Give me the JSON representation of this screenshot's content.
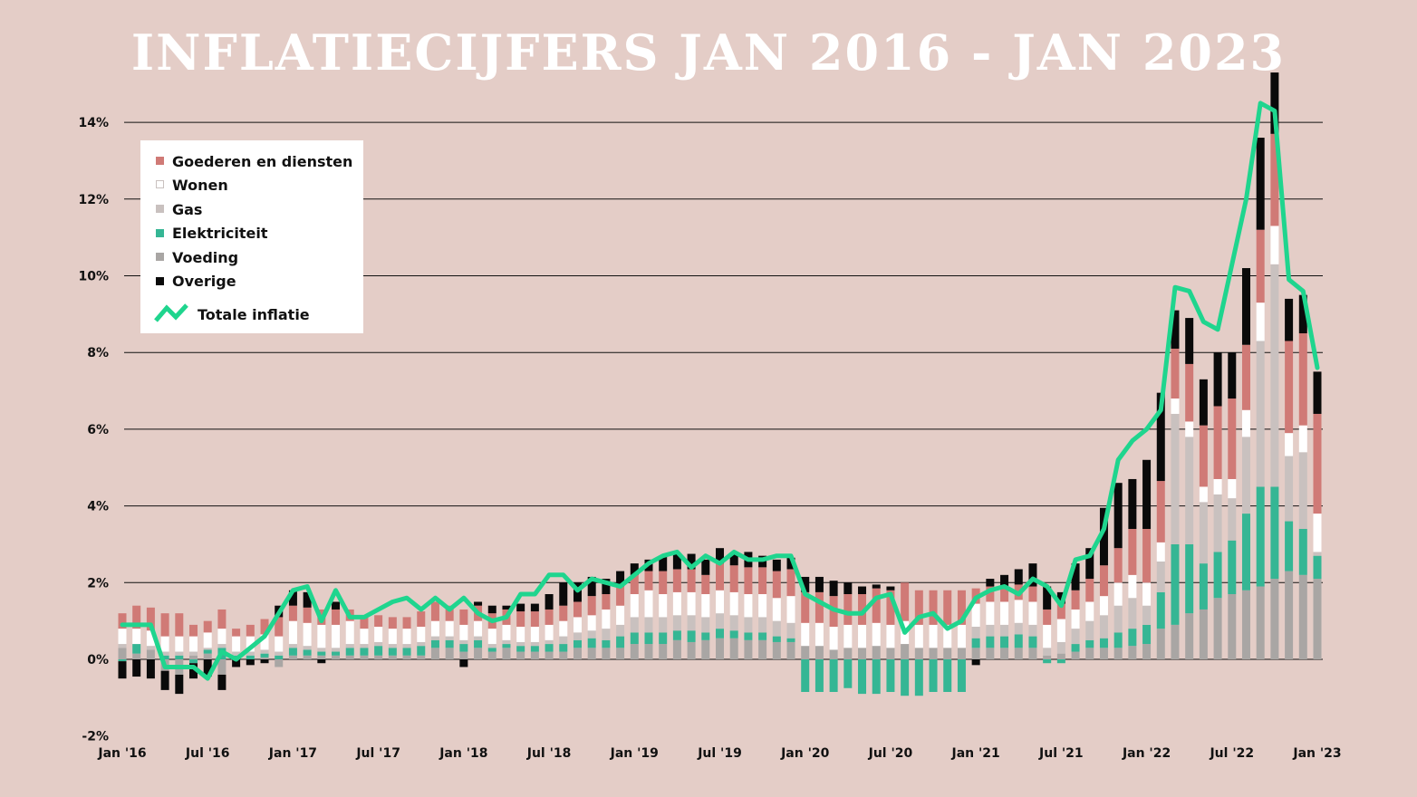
{
  "chart_data": {
    "type": "bar",
    "title": "INFLATIECIJFERS JAN 2016 - JAN 2023",
    "xlabel": "",
    "ylabel": "",
    "ylim": [
      -2,
      14.5
    ],
    "yticks": [
      -2,
      0,
      2,
      4,
      6,
      8,
      10,
      12,
      14
    ],
    "ytick_labels": [
      "-2%",
      "0%",
      "2%",
      "4%",
      "6%",
      "8%",
      "10%",
      "12%",
      "14%"
    ],
    "xtick_labels": [
      "Jan '16",
      "Jul '16",
      "Jan '17",
      "Jul '17",
      "Jan '18",
      "Jul '18",
      "Jan '19",
      "Jul '19",
      "Jan '20",
      "Jul '20",
      "Jan '21",
      "Jul '21",
      "Jan '22",
      "Jul '22",
      "Jan '23"
    ],
    "grid": true,
    "stacked": true,
    "legend_position": "top-left",
    "categories": [
      "2016-01",
      "2016-02",
      "2016-03",
      "2016-04",
      "2016-05",
      "2016-06",
      "2016-07",
      "2016-08",
      "2016-09",
      "2016-10",
      "2016-11",
      "2016-12",
      "2017-01",
      "2017-02",
      "2017-03",
      "2017-04",
      "2017-05",
      "2017-06",
      "2017-07",
      "2017-08",
      "2017-09",
      "2017-10",
      "2017-11",
      "2017-12",
      "2018-01",
      "2018-02",
      "2018-03",
      "2018-04",
      "2018-05",
      "2018-06",
      "2018-07",
      "2018-08",
      "2018-09",
      "2018-10",
      "2018-11",
      "2018-12",
      "2019-01",
      "2019-02",
      "2019-03",
      "2019-04",
      "2019-05",
      "2019-06",
      "2019-07",
      "2019-08",
      "2019-09",
      "2019-10",
      "2019-11",
      "2019-12",
      "2020-01",
      "2020-02",
      "2020-03",
      "2020-04",
      "2020-05",
      "2020-06",
      "2020-07",
      "2020-08",
      "2020-09",
      "2020-10",
      "2020-11",
      "2020-12",
      "2021-01",
      "2021-02",
      "2021-03",
      "2021-04",
      "2021-05",
      "2021-06",
      "2021-07",
      "2021-08",
      "2021-09",
      "2021-10",
      "2021-11",
      "2021-12",
      "2022-01",
      "2022-02",
      "2022-03",
      "2022-04",
      "2022-05",
      "2022-06",
      "2022-07",
      "2022-08",
      "2022-09",
      "2022-10",
      "2022-11",
      "2022-12",
      "2023-01"
    ],
    "series": [
      {
        "name": "Voeding",
        "color": "#a9a6a4",
        "values": [
          0.3,
          0.15,
          0.25,
          -0.3,
          -0.4,
          0.1,
          0.15,
          -0.4,
          0.0,
          0.0,
          0.05,
          -0.2,
          0.1,
          0.1,
          0.1,
          0.1,
          0.1,
          0.1,
          0.1,
          0.1,
          0.1,
          0.1,
          0.3,
          0.3,
          0.2,
          0.3,
          0.2,
          0.3,
          0.2,
          0.2,
          0.2,
          0.2,
          0.3,
          0.3,
          0.3,
          0.3,
          0.4,
          0.4,
          0.4,
          0.5,
          0.45,
          0.5,
          0.55,
          0.55,
          0.5,
          0.5,
          0.45,
          0.45,
          0.35,
          0.35,
          0.25,
          0.3,
          0.3,
          0.35,
          0.3,
          0.4,
          0.3,
          0.3,
          0.3,
          0.3,
          0.3,
          0.3,
          0.3,
          0.3,
          0.3,
          0.1,
          0.15,
          0.2,
          0.3,
          0.3,
          0.3,
          0.35,
          0.4,
          0.8,
          0.9,
          1.2,
          1.3,
          1.6,
          1.7,
          1.8,
          1.9,
          2.1,
          2.3,
          2.2,
          2.1
        ]
      },
      {
        "name": "Elektriciteit",
        "color": "#35b694",
        "values": [
          -0.05,
          0.25,
          0.0,
          0.1,
          0.1,
          -0.1,
          0.1,
          0.3,
          0.1,
          0.1,
          0.1,
          0.1,
          0.2,
          0.15,
          0.1,
          0.1,
          0.2,
          0.2,
          0.25,
          0.2,
          0.2,
          0.25,
          0.2,
          0.2,
          0.2,
          0.2,
          0.1,
          0.1,
          0.15,
          0.15,
          0.2,
          0.2,
          0.2,
          0.25,
          0.2,
          0.3,
          0.3,
          0.3,
          0.3,
          0.25,
          0.3,
          0.2,
          0.25,
          0.2,
          0.2,
          0.2,
          0.15,
          0.1,
          -0.85,
          -0.85,
          -0.85,
          -0.75,
          -0.9,
          -0.9,
          -0.85,
          -0.95,
          -0.95,
          -0.85,
          -0.85,
          -0.85,
          0.25,
          0.3,
          0.3,
          0.35,
          0.3,
          -0.1,
          -0.1,
          0.2,
          0.2,
          0.25,
          0.4,
          0.45,
          0.5,
          0.95,
          2.1,
          1.8,
          1.2,
          1.2,
          1.4,
          2.0,
          2.6,
          2.4,
          1.3,
          1.2,
          0.6
        ]
      },
      {
        "name": "Gas",
        "color": "#c9c1bf",
        "values": [
          0.1,
          0.0,
          0.1,
          0.1,
          0.1,
          0.1,
          0.05,
          0.1,
          0.1,
          0.1,
          0.1,
          0.1,
          0.1,
          0.1,
          0.1,
          0.1,
          0.1,
          0.1,
          0.1,
          0.1,
          0.1,
          0.1,
          0.1,
          0.1,
          0.1,
          0.1,
          0.1,
          0.1,
          0.1,
          0.1,
          0.1,
          0.2,
          0.2,
          0.2,
          0.3,
          0.3,
          0.4,
          0.4,
          0.4,
          0.4,
          0.4,
          0.4,
          0.4,
          0.4,
          0.4,
          0.4,
          0.4,
          0.4,
          0.0,
          0.0,
          0.0,
          0.0,
          0.0,
          0.0,
          0.0,
          0.0,
          0.0,
          0.0,
          0.0,
          0.0,
          0.3,
          0.3,
          0.3,
          0.3,
          0.3,
          0.2,
          0.3,
          0.4,
          0.5,
          0.6,
          0.7,
          0.8,
          0.5,
          0.8,
          3.4,
          2.8,
          1.6,
          1.5,
          1.1,
          2.0,
          3.8,
          5.8,
          1.7,
          2.0,
          0.1
        ]
      },
      {
        "name": "Wonen",
        "color": "#ffffff",
        "values": [
          0.4,
          0.4,
          0.4,
          0.4,
          0.4,
          0.4,
          0.4,
          0.4,
          0.4,
          0.4,
          0.4,
          0.4,
          0.6,
          0.6,
          0.6,
          0.6,
          0.6,
          0.4,
          0.4,
          0.4,
          0.4,
          0.4,
          0.4,
          0.4,
          0.4,
          0.4,
          0.4,
          0.4,
          0.4,
          0.4,
          0.4,
          0.4,
          0.4,
          0.4,
          0.5,
          0.5,
          0.6,
          0.7,
          0.6,
          0.6,
          0.6,
          0.6,
          0.6,
          0.6,
          0.6,
          0.6,
          0.6,
          0.7,
          0.6,
          0.6,
          0.6,
          0.6,
          0.6,
          0.6,
          0.6,
          0.6,
          0.6,
          0.6,
          0.6,
          0.6,
          0.6,
          0.6,
          0.6,
          0.6,
          0.6,
          0.6,
          0.6,
          0.5,
          0.5,
          0.5,
          0.6,
          0.6,
          0.6,
          0.5,
          0.4,
          0.4,
          0.4,
          0.4,
          0.5,
          0.7,
          1.0,
          1.0,
          0.6,
          0.7,
          1.0
        ]
      },
      {
        "name": "Goederen en diensten",
        "color": "#d07a76",
        "values": [
          0.4,
          0.6,
          0.6,
          0.6,
          0.6,
          0.3,
          0.3,
          0.5,
          0.2,
          0.3,
          0.4,
          0.5,
          0.4,
          0.4,
          0.4,
          0.4,
          0.3,
          0.3,
          0.3,
          0.3,
          0.3,
          0.4,
          0.5,
          0.4,
          0.4,
          0.4,
          0.4,
          0.4,
          0.4,
          0.4,
          0.4,
          0.4,
          0.4,
          0.5,
          0.4,
          0.5,
          0.5,
          0.5,
          0.6,
          0.6,
          0.6,
          0.5,
          0.7,
          0.7,
          0.7,
          0.7,
          0.7,
          0.7,
          0.8,
          0.8,
          0.8,
          0.8,
          0.8,
          0.9,
          0.9,
          1.0,
          0.9,
          0.9,
          0.9,
          0.9,
          0.4,
          0.4,
          0.4,
          0.4,
          0.4,
          0.4,
          0.4,
          0.5,
          0.6,
          0.8,
          0.9,
          1.2,
          1.4,
          1.6,
          1.3,
          1.5,
          1.6,
          1.9,
          2.1,
          1.7,
          1.9,
          2.4,
          2.4,
          2.4,
          2.6
        ]
      },
      {
        "name": "Overige",
        "color": "#0a0a0a",
        "values": [
          -0.45,
          -0.45,
          -0.5,
          -0.5,
          -0.5,
          -0.4,
          -0.45,
          -0.4,
          -0.2,
          -0.15,
          -0.1,
          0.3,
          0.4,
          0.4,
          -0.1,
          0.2,
          0.0,
          0.0,
          0.0,
          0.0,
          0.0,
          0.0,
          0.0,
          0.0,
          -0.2,
          0.1,
          0.2,
          0.1,
          0.2,
          0.2,
          0.4,
          0.6,
          0.5,
          0.5,
          0.4,
          0.4,
          0.3,
          0.3,
          0.4,
          0.4,
          0.4,
          0.4,
          0.4,
          0.3,
          0.4,
          0.3,
          0.3,
          0.3,
          0.4,
          0.4,
          0.4,
          0.3,
          0.2,
          0.1,
          0.1,
          0.0,
          0.0,
          0.0,
          0.0,
          0.0,
          -0.15,
          0.2,
          0.3,
          0.4,
          0.6,
          0.6,
          0.3,
          0.7,
          0.8,
          1.5,
          1.7,
          1.3,
          1.8,
          2.3,
          1.0,
          1.2,
          1.2,
          1.4,
          1.2,
          2.0,
          2.4,
          1.6,
          1.1,
          1.0,
          1.1
        ]
      }
    ],
    "line": {
      "name": "Totale inflatie",
      "color": "#1fd58e",
      "values": [
        0.9,
        0.9,
        0.9,
        -0.2,
        -0.2,
        -0.2,
        -0.5,
        0.2,
        0.0,
        0.3,
        0.6,
        1.2,
        1.8,
        1.9,
        1.0,
        1.8,
        1.1,
        1.1,
        1.3,
        1.5,
        1.6,
        1.3,
        1.6,
        1.3,
        1.6,
        1.2,
        1.0,
        1.1,
        1.7,
        1.7,
        2.2,
        2.2,
        1.8,
        2.1,
        2.0,
        1.9,
        2.2,
        2.5,
        2.7,
        2.8,
        2.4,
        2.7,
        2.5,
        2.8,
        2.6,
        2.6,
        2.7,
        2.7,
        1.7,
        1.5,
        1.3,
        1.2,
        1.2,
        1.6,
        1.7,
        0.7,
        1.1,
        1.2,
        0.8,
        1.0,
        1.6,
        1.8,
        1.9,
        1.7,
        2.1,
        1.9,
        1.4,
        2.6,
        2.7,
        3.4,
        5.2,
        5.7,
        6.0,
        6.5,
        9.7,
        9.6,
        8.8,
        8.6,
        10.3,
        12.0,
        14.5,
        14.3,
        9.9,
        9.6,
        7.6
      ]
    }
  }
}
